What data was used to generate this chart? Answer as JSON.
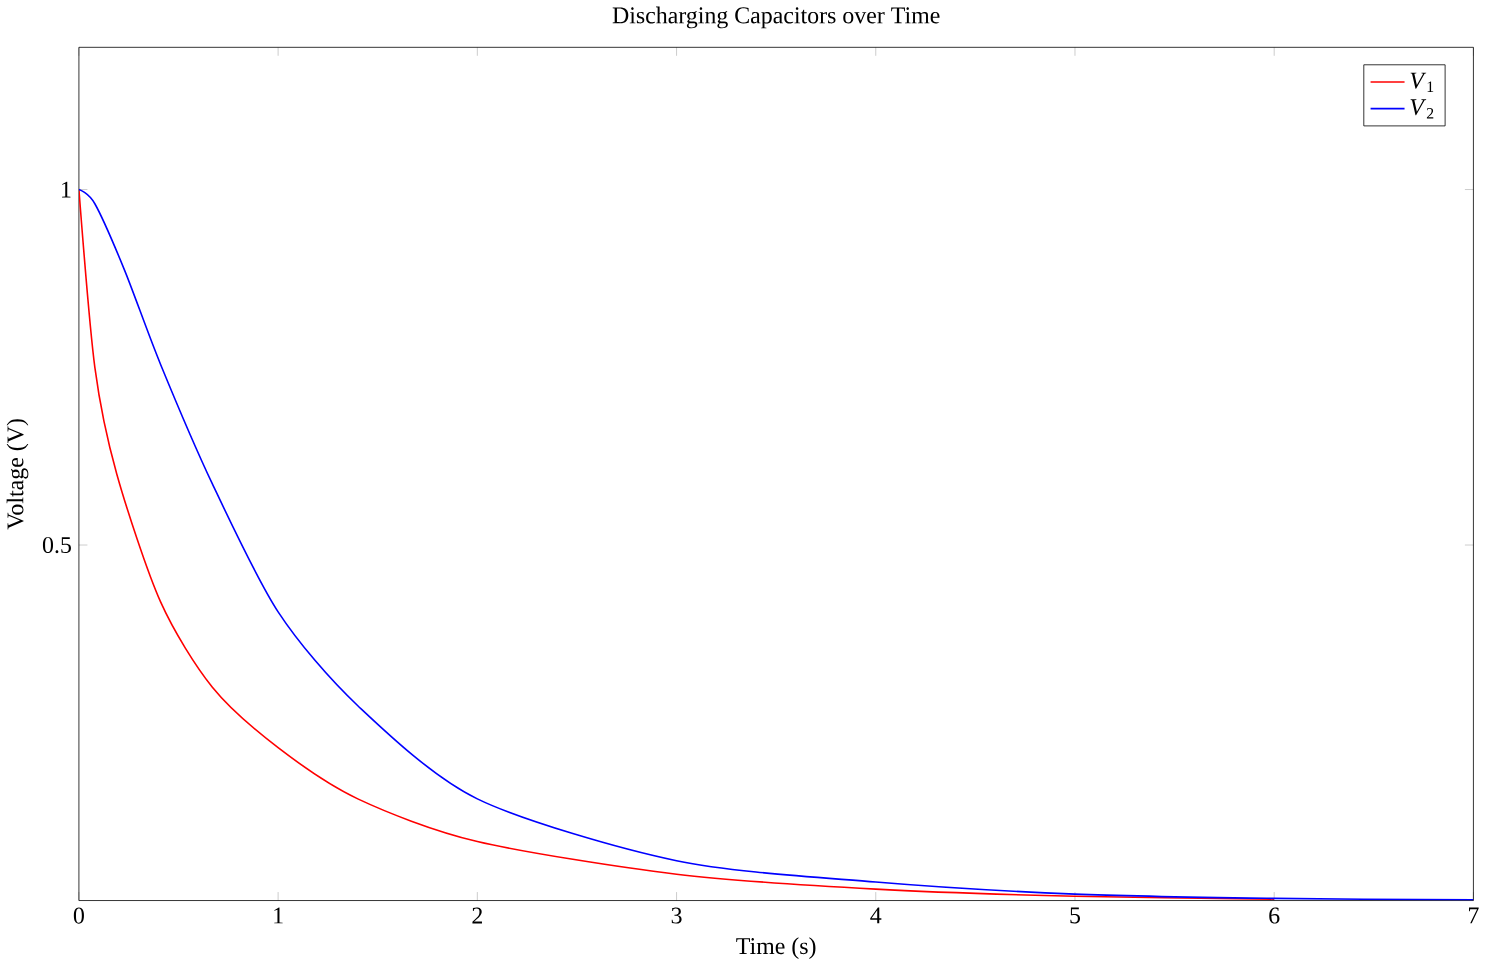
{
  "chart_data": {
    "type": "line",
    "title": "Discharging Capacitors over Time",
    "xlabel": "Time (s)",
    "ylabel": "Voltage (V)",
    "xlim": [
      0,
      7
    ],
    "ylim": [
      0,
      1.2
    ],
    "xticks": [
      0,
      1,
      2,
      3,
      4,
      5,
      6,
      7
    ],
    "yticks": [
      0.5,
      1
    ],
    "legend": "top right",
    "grid": false,
    "marker": "none",
    "line_style": "solid",
    "series": [
      {
        "name": "*V*$_{1}$",
        "color": "#ff0000",
        "x": [
          0,
          0.08,
          0.19,
          0.41,
          0.67,
          1.0,
          1.4,
          2.0,
          3.0,
          4.0,
          5.0,
          6.0
        ],
        "values": [
          1,
          0.75,
          0.6,
          0.42,
          0.3,
          0.215,
          0.143,
          0.083,
          0.037,
          0.016,
          0.006,
          0.002
        ]
      },
      {
        "name": "*V*$_{2}$",
        "color": "#0000ff",
        "x": [
          0,
          0.08,
          0.23,
          0.41,
          0.67,
          1.0,
          1.4,
          2.0,
          3.0,
          4.0,
          5.0,
          6.0,
          7.0
        ],
        "values": [
          1,
          0.98,
          0.886,
          0.754,
          0.586,
          0.406,
          0.274,
          0.143,
          0.056,
          0.026,
          0.009,
          0.003,
          0.001
        ]
      }
    ]
  }
}
